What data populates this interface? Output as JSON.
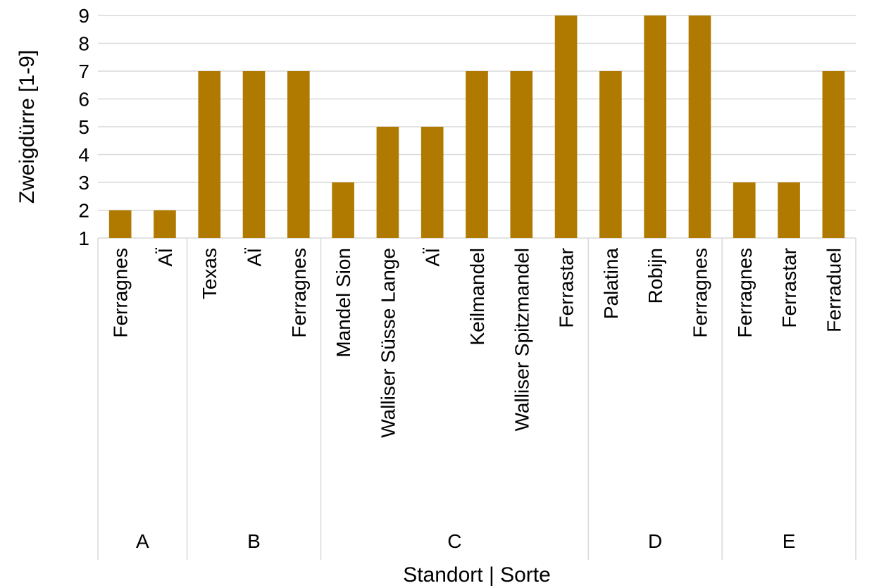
{
  "chart_data": {
    "type": "bar",
    "title": "",
    "xlabel": "Standort | Sorte",
    "ylabel": "Zweigdürre [1-9]",
    "ylim": [
      1,
      9
    ],
    "yticks": [
      1,
      2,
      3,
      4,
      5,
      6,
      7,
      8,
      9
    ],
    "grid": true,
    "legend": "none",
    "bar_color": "#b07a00",
    "groups": [
      {
        "name": "A",
        "categories": [
          "Ferragnes",
          "AÏ"
        ],
        "values": [
          2,
          2
        ]
      },
      {
        "name": "B",
        "categories": [
          "Texas",
          "AÏ",
          "Ferragnes"
        ],
        "values": [
          7,
          7,
          7
        ]
      },
      {
        "name": "C",
        "categories": [
          "Mandel Sion",
          "Walliser Süsse Lange",
          "AÏ",
          "Keilmandel",
          "Walliser Spitzmandel",
          "Ferrastar"
        ],
        "values": [
          3,
          5,
          5,
          7,
          7,
          9
        ]
      },
      {
        "name": "D",
        "categories": [
          "Palatina",
          "Robijn",
          "Ferragnes"
        ],
        "values": [
          7,
          9,
          9
        ]
      },
      {
        "name": "E",
        "categories": [
          "Ferragnes",
          "Ferrastar",
          "Ferraduel"
        ],
        "values": [
          3,
          3,
          7
        ]
      }
    ]
  }
}
